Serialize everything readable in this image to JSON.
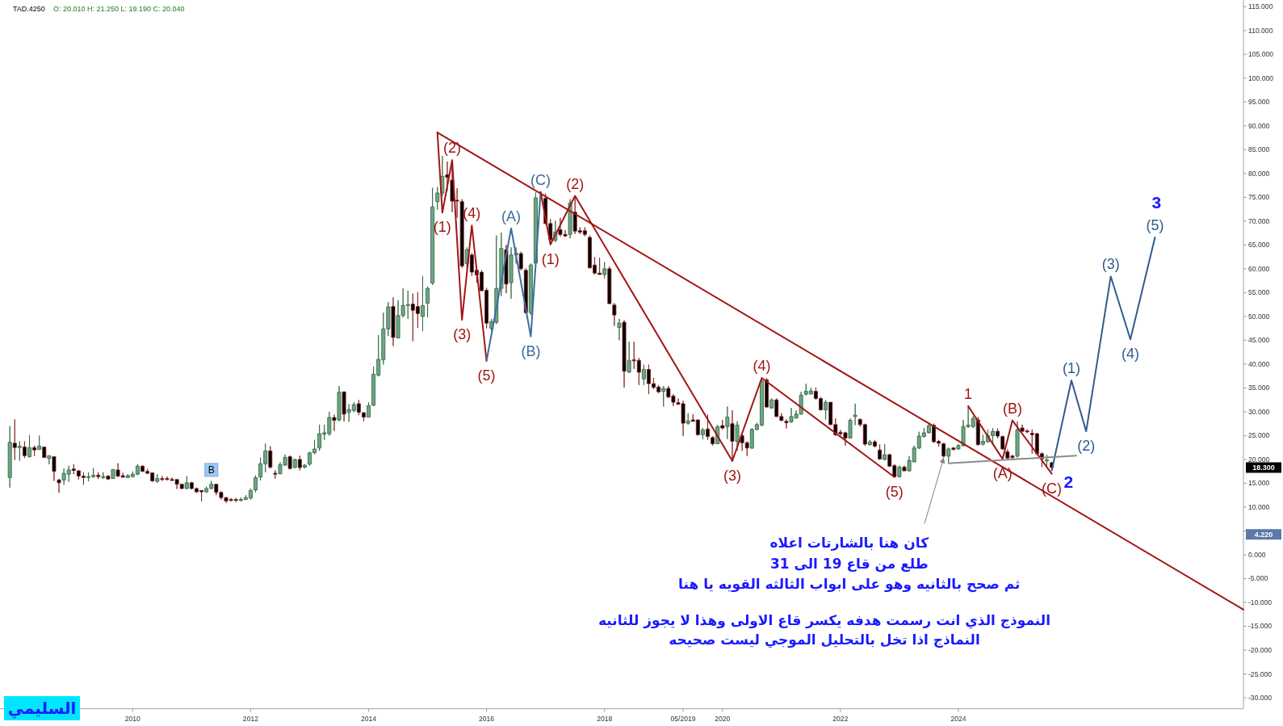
{
  "chart_data": {
    "type": "candlestick",
    "title": "TAD.4250",
    "subtitle": "O: 20.010  H: 21.250  L: 19.190  C: 20.040",
    "x": [
      "2007-12",
      "2008-01",
      "2008-02",
      "2008-03",
      "2008-04",
      "2008-05",
      "2008-06",
      "2008-07",
      "2008-08",
      "2008-09",
      "2008-10",
      "2008-11",
      "2008-12",
      "2009-01",
      "2009-02",
      "2009-03",
      "2009-04",
      "2009-05",
      "2009-06",
      "2009-07",
      "2009-08",
      "2009-09",
      "2009-10",
      "2009-11",
      "2009-12",
      "2010-01",
      "2010-02",
      "2010-03",
      "2010-04",
      "2010-05",
      "2010-06",
      "2010-07",
      "2010-08",
      "2010-09",
      "2010-10",
      "2010-11",
      "2010-12",
      "2011-01",
      "2011-02",
      "2011-03",
      "2011-04",
      "2011-05",
      "2011-06",
      "2011-07",
      "2011-08",
      "2011-09",
      "2011-10",
      "2011-11",
      "2011-12",
      "2012-01",
      "2012-02",
      "2012-03",
      "2012-04",
      "2012-05",
      "2012-06",
      "2012-07",
      "2012-08",
      "2012-09",
      "2012-10",
      "2012-11",
      "2012-12",
      "2013-01",
      "2013-02",
      "2013-03",
      "2013-04",
      "2013-05",
      "2013-06",
      "2013-07",
      "2013-08",
      "2013-09",
      "2013-10",
      "2013-11",
      "2013-12",
      "2014-01",
      "2014-02",
      "2014-03",
      "2014-04",
      "2014-05",
      "2014-06",
      "2014-07",
      "2014-08",
      "2014-09",
      "2014-10",
      "2014-11",
      "2014-12",
      "2015-01",
      "2015-02",
      "2015-03",
      "2015-04",
      "2015-05",
      "2015-06",
      "2015-07",
      "2015-08",
      "2015-09",
      "2015-10",
      "2015-11",
      "2015-12",
      "2016-01",
      "2016-02",
      "2016-03",
      "2016-04",
      "2016-05",
      "2016-06",
      "2016-07",
      "2016-08",
      "2016-09",
      "2016-10",
      "2016-11",
      "2017-01",
      "2017-02",
      "2017-03",
      "2017-04",
      "2017-05",
      "2017-06",
      "2017-07",
      "2017-08",
      "2017-09",
      "2017-10",
      "2017-11",
      "2017-12",
      "2018-01",
      "2018-02",
      "2018-03",
      "2018-04",
      "2018-05",
      "2018-06",
      "2018-07",
      "2018-08",
      "2018-09",
      "2018-10",
      "2018-11",
      "2018-12",
      "2019-01",
      "2019-02",
      "2019-03",
      "2019-04",
      "2019-05",
      "2019-06",
      "2019-07",
      "2019-08",
      "2019-09",
      "2019-10",
      "2019-11",
      "2019-12",
      "2020-01",
      "2020-02",
      "2020-03",
      "2020-04",
      "2020-05",
      "2020-06",
      "2020-07",
      "2020-08",
      "2020-09",
      "2020-10",
      "2020-11",
      "2020-12",
      "2021-01",
      "2021-02",
      "2021-03",
      "2021-04",
      "2021-05",
      "2021-06",
      "2021-07",
      "2021-08",
      "2021-09",
      "2021-10",
      "2021-11",
      "2021-12",
      "2022-01",
      "2022-02",
      "2022-03",
      "2022-04",
      "2022-05",
      "2022-06",
      "2022-07",
      "2022-08",
      "2022-09",
      "2022-10",
      "2022-11",
      "2022-12",
      "2023-01",
      "2023-02",
      "2023-03",
      "2023-04",
      "2023-05",
      "2023-06",
      "2023-07",
      "2023-08",
      "2023-09",
      "2023-10",
      "2023-11",
      "2023-12",
      "2024-01",
      "2024-02",
      "2024-03",
      "2024-04",
      "2024-05",
      "2024-06",
      "2024-07",
      "2024-08",
      "2024-09",
      "2024-10",
      "2024-11",
      "2024-12",
      "2025-01",
      "2025-02",
      "2025-03",
      "2025-04",
      "2025-05",
      "2025-06",
      "2025-07",
      "2025-08"
    ],
    "ohlc": [
      [
        16.2,
        27.0,
        14.1,
        23.6
      ],
      [
        23.4,
        28.4,
        19.9,
        22.5
      ],
      [
        22.5,
        23.8,
        19.7,
        22.8
      ],
      [
        22.6,
        23.8,
        20.3,
        20.8
      ],
      [
        20.6,
        25.1,
        20.4,
        22.5
      ],
      [
        22.5,
        22.9,
        20.7,
        22.0
      ],
      [
        22.1,
        25.0,
        22.0,
        22.8
      ],
      [
        22.6,
        22.6,
        20.4,
        20.4
      ],
      [
        20.2,
        20.8,
        19.0,
        20.8
      ],
      [
        20.6,
        20.6,
        15.5,
        17.5
      ],
      [
        15.7,
        15.9,
        13.0,
        15.1
      ],
      [
        15.7,
        18.1,
        14.7,
        17.1
      ],
      [
        16.9,
        18.7,
        15.3,
        17.8
      ],
      [
        18.0,
        19.0,
        16.9,
        17.7
      ],
      [
        17.6,
        17.8,
        15.8,
        16.5
      ],
      [
        16.5,
        17.3,
        14.7,
        16.2
      ],
      [
        16.2,
        17.3,
        15.4,
        16.4
      ],
      [
        16.4,
        18.2,
        16.1,
        16.7
      ],
      [
        16.7,
        17.3,
        15.9,
        16.4
      ],
      [
        16.2,
        17.3,
        15.9,
        16.4
      ],
      [
        16.5,
        16.7,
        15.7,
        15.9
      ],
      [
        16.0,
        17.9,
        16.0,
        17.9
      ],
      [
        17.8,
        19.2,
        16.3,
        16.5
      ],
      [
        16.6,
        17.2,
        16.1,
        16.3
      ],
      [
        16.2,
        16.9,
        16.1,
        16.6
      ],
      [
        16.4,
        17.5,
        16.2,
        16.9
      ],
      [
        16.9,
        19.0,
        16.7,
        18.6
      ],
      [
        18.6,
        18.8,
        17.4,
        17.5
      ],
      [
        17.5,
        18.0,
        16.9,
        17.1
      ],
      [
        17.2,
        17.2,
        15.3,
        15.5
      ],
      [
        15.4,
        16.9,
        15.1,
        16.0
      ],
      [
        16.0,
        16.5,
        15.5,
        15.8
      ],
      [
        16.0,
        16.4,
        15.6,
        15.8
      ],
      [
        15.8,
        16.2,
        15.5,
        15.6
      ],
      [
        15.8,
        15.8,
        13.8,
        14.8
      ],
      [
        14.8,
        14.9,
        13.8,
        13.9
      ],
      [
        13.9,
        16.5,
        13.8,
        15.1
      ],
      [
        15.1,
        15.3,
        13.7,
        13.9
      ],
      [
        13.9,
        14.1,
        13.0,
        13.2
      ],
      [
        13.5,
        13.5,
        11.2,
        13.2
      ],
      [
        13.2,
        14.3,
        13.0,
        13.9
      ],
      [
        13.9,
        15.5,
        13.8,
        14.8
      ],
      [
        14.8,
        14.9,
        12.5,
        13.1
      ],
      [
        13.1,
        13.3,
        11.6,
        12.0
      ],
      [
        12.0,
        12.1,
        10.9,
        11.3
      ],
      [
        11.6,
        11.9,
        11.2,
        11.4
      ],
      [
        11.6,
        11.9,
        11.1,
        11.4
      ],
      [
        11.4,
        12.0,
        11.2,
        11.6
      ],
      [
        11.6,
        12.5,
        11.5,
        12.0
      ],
      [
        11.9,
        13.9,
        11.6,
        13.5
      ],
      [
        13.6,
        16.7,
        13.1,
        16.2
      ],
      [
        16.3,
        20.4,
        15.6,
        19.1
      ],
      [
        19.1,
        23.3,
        17.3,
        21.8
      ],
      [
        21.8,
        22.8,
        18.1,
        18.4
      ],
      [
        17.1,
        17.7,
        16.0,
        16.9
      ],
      [
        17.0,
        19.4,
        16.9,
        18.9
      ],
      [
        18.8,
        21.0,
        18.7,
        20.4
      ],
      [
        20.6,
        20.8,
        17.9,
        18.1
      ],
      [
        18.3,
        20.1,
        18.2,
        20.0
      ],
      [
        20.0,
        20.8,
        17.7,
        18.3
      ],
      [
        18.4,
        19.0,
        18.1,
        18.8
      ],
      [
        19.0,
        21.6,
        18.7,
        21.4
      ],
      [
        21.4,
        24.1,
        21.1,
        22.2
      ],
      [
        22.4,
        27.3,
        21.8,
        25.4
      ],
      [
        25.3,
        27.3,
        24.1,
        25.6
      ],
      [
        25.4,
        30.0,
        25.0,
        28.8
      ],
      [
        28.8,
        29.4,
        26.0,
        28.2
      ],
      [
        28.3,
        35.4,
        28.0,
        34.1
      ],
      [
        34.2,
        34.2,
        28.0,
        29.5
      ],
      [
        29.9,
        31.6,
        27.9,
        30.5
      ],
      [
        30.3,
        32.0,
        29.9,
        31.5
      ],
      [
        31.7,
        32.5,
        29.3,
        29.9
      ],
      [
        29.8,
        29.9,
        28.0,
        28.9
      ],
      [
        28.9,
        32.0,
        28.9,
        31.3
      ],
      [
        31.4,
        39.5,
        31.2,
        37.9
      ],
      [
        37.7,
        46.1,
        37.4,
        41.0
      ],
      [
        40.9,
        50.8,
        39.9,
        47.4
      ],
      [
        47.4,
        53.0,
        45.9,
        52.0
      ],
      [
        52.1,
        54.0,
        43.8,
        45.6
      ],
      [
        45.5,
        53.4,
        45.4,
        50.2
      ],
      [
        50.2,
        55.9,
        49.8,
        52.3
      ],
      [
        52.3,
        55.4,
        49.5,
        52.5
      ],
      [
        52.6,
        54.8,
        44.8,
        51.3
      ],
      [
        52.1,
        55.1,
        47.6,
        50.6
      ],
      [
        50.0,
        58.5,
        46.9,
        52.3
      ],
      [
        52.8,
        56.3,
        49.8,
        55.9
      ],
      [
        57.0,
        77.0,
        56.6,
        73.0
      ],
      [
        74.1,
        77.2,
        72.4,
        75.9
      ],
      [
        75.9,
        83.7,
        75.2,
        79.4
      ],
      [
        79.7,
        82.5,
        76.3,
        79.2
      ],
      [
        78.6,
        81.7,
        71.9,
        74.2
      ],
      [
        74.4,
        76.9,
        70.7,
        74.2
      ],
      [
        74.1,
        74.6,
        60.2,
        60.6
      ],
      [
        61.1,
        64.5,
        60.2,
        64.0
      ],
      [
        62.9,
        63.3,
        58.5,
        59.3
      ],
      [
        59.7,
        60.2,
        57.1,
        58.7
      ],
      [
        59.3,
        59.7,
        55.3,
        55.4
      ],
      [
        55.5,
        56.0,
        47.5,
        48.6
      ],
      [
        47.5,
        49.5,
        46.9,
        48.9
      ],
      [
        48.8,
        67.0,
        48.4,
        55.9
      ],
      [
        55.9,
        67.6,
        54.3,
        64.3
      ],
      [
        64.0,
        65.0,
        54.9,
        56.8
      ],
      [
        57.1,
        64.5,
        53.7,
        62.9
      ],
      [
        62.9,
        64.5,
        61.1,
        63.3
      ],
      [
        63.2,
        63.6,
        59.7,
        60.0
      ],
      [
        59.7,
        60.1,
        50.6,
        50.8
      ],
      [
        50.8,
        61.1,
        50.3,
        60.8
      ],
      [
        61.2,
        76.0,
        60.8,
        74.9
      ],
      [
        74.8,
        75.8,
        69.3,
        69.5
      ],
      [
        69.5,
        70.4,
        65.3,
        66.1
      ],
      [
        66.0,
        70.1,
        65.6,
        67.7
      ],
      [
        68.2,
        70.7,
        66.8,
        67.2
      ],
      [
        67.2,
        68.1,
        66.7,
        66.9
      ],
      [
        67.2,
        74.6,
        66.4,
        73.8
      ],
      [
        71.9,
        74.9,
        67.3,
        67.9
      ],
      [
        68.0,
        68.7,
        67.3,
        67.7
      ],
      [
        68.0,
        68.7,
        66.8,
        67.2
      ],
      [
        66.6,
        67.0,
        60.1,
        60.2
      ],
      [
        60.8,
        62.5,
        58.8,
        59.1
      ],
      [
        59.1,
        62.3,
        58.8,
        58.8
      ],
      [
        58.8,
        61.4,
        58.0,
        60.0
      ],
      [
        60.0,
        60.5,
        52.6,
        52.7
      ],
      [
        52.4,
        52.8,
        48.0,
        50.3
      ],
      [
        47.7,
        49.5,
        45.0,
        48.6
      ],
      [
        48.8,
        49.2,
        35.1,
        38.5
      ],
      [
        38.3,
        44.7,
        38.2,
        40.8
      ],
      [
        40.9,
        44.7,
        39.0,
        40.7
      ],
      [
        40.8,
        41.3,
        35.6,
        38.3
      ],
      [
        36.9,
        39.9,
        35.6,
        38.9
      ],
      [
        38.9,
        39.9,
        33.7,
        35.9
      ],
      [
        35.9,
        37.1,
        34.8,
        35.1
      ],
      [
        35.2,
        35.6,
        33.9,
        34.2
      ],
      [
        34.3,
        35.4,
        31.1,
        34.9
      ],
      [
        34.9,
        35.4,
        32.9,
        33.1
      ],
      [
        33.3,
        33.7,
        31.2,
        32.0
      ],
      [
        31.9,
        32.8,
        31.4,
        31.6
      ],
      [
        31.7,
        32.3,
        24.9,
        27.6
      ],
      [
        27.6,
        29.7,
        27.3,
        28.1
      ],
      [
        28.3,
        29.5,
        28.0,
        28.0
      ],
      [
        28.3,
        28.4,
        25.0,
        25.2
      ],
      [
        25.2,
        26.6,
        24.2,
        26.2
      ],
      [
        26.4,
        29.4,
        24.1,
        24.8
      ],
      [
        24.6,
        24.9,
        22.9,
        23.3
      ],
      [
        23.3,
        27.2,
        23.2,
        26.9
      ],
      [
        27.1,
        28.3,
        26.3,
        26.6
      ],
      [
        26.9,
        31.1,
        24.3,
        28.9
      ],
      [
        27.5,
        30.3,
        19.5,
        23.8
      ],
      [
        23.8,
        28.0,
        21.8,
        27.2
      ],
      [
        25.0,
        25.5,
        21.8,
        23.5
      ],
      [
        23.5,
        23.8,
        20.7,
        22.4
      ],
      [
        22.4,
        26.6,
        22.2,
        26.3
      ],
      [
        26.3,
        27.7,
        26.1,
        27.3
      ],
      [
        27.2,
        37.1,
        27.0,
        36.5
      ],
      [
        36.7,
        37.1,
        30.8,
        31.0
      ],
      [
        30.8,
        32.8,
        30.7,
        32.5
      ],
      [
        32.5,
        32.8,
        28.9,
        29.0
      ],
      [
        29.0,
        29.7,
        28.0,
        28.2
      ],
      [
        28.0,
        28.4,
        26.5,
        27.7
      ],
      [
        27.9,
        30.8,
        27.7,
        29.0
      ],
      [
        28.7,
        30.3,
        28.6,
        29.5
      ],
      [
        29.5,
        34.2,
        29.4,
        33.5
      ],
      [
        33.7,
        35.9,
        33.4,
        34.3
      ],
      [
        33.7,
        35.1,
        33.7,
        34.4
      ],
      [
        34.3,
        35.1,
        32.5,
        32.8
      ],
      [
        32.8,
        33.1,
        30.3,
        30.4
      ],
      [
        30.4,
        32.5,
        28.3,
        32.0
      ],
      [
        32.0,
        32.0,
        27.2,
        27.3
      ],
      [
        27.3,
        28.6,
        24.9,
        25.2
      ],
      [
        25.7,
        26.2,
        25.0,
        25.4
      ],
      [
        25.6,
        25.8,
        22.9,
        24.5
      ],
      [
        24.5,
        28.6,
        24.4,
        28.2
      ],
      [
        29.0,
        31.7,
        27.2,
        29.3
      ],
      [
        28.4,
        28.6,
        26.9,
        27.3
      ],
      [
        27.3,
        27.5,
        22.9,
        23.2
      ],
      [
        23.1,
        24.1,
        22.9,
        23.7
      ],
      [
        23.7,
        24.1,
        22.5,
        22.8
      ],
      [
        22.0,
        23.2,
        19.9,
        20.1
      ],
      [
        20.0,
        23.2,
        19.8,
        21.0
      ],
      [
        21.0,
        21.2,
        18.4,
        18.6
      ],
      [
        18.7,
        19.0,
        16.2,
        16.4
      ],
      [
        16.4,
        18.7,
        16.2,
        18.4
      ],
      [
        18.4,
        18.7,
        17.6,
        17.6
      ],
      [
        17.6,
        20.7,
        17.5,
        19.8
      ],
      [
        19.5,
        22.9,
        19.4,
        22.4
      ],
      [
        22.4,
        25.8,
        22.2,
        24.9
      ],
      [
        24.8,
        26.6,
        24.6,
        25.6
      ],
      [
        25.6,
        27.6,
        25.5,
        27.1
      ],
      [
        27.2,
        27.5,
        23.5,
        23.7
      ],
      [
        23.8,
        24.1,
        22.7,
        23.4
      ],
      [
        23.3,
        23.5,
        20.4,
        20.7
      ],
      [
        20.7,
        22.5,
        19.4,
        22.2
      ],
      [
        22.4,
        22.6,
        21.9,
        22.1
      ],
      [
        22.2,
        23.2,
        22.1,
        22.9
      ],
      [
        22.9,
        28.3,
        22.7,
        26.9
      ],
      [
        26.9,
        31.2,
        26.6,
        27.2
      ],
      [
        26.9,
        29.1,
        26.6,
        28.6
      ],
      [
        28.3,
        28.9,
        22.9,
        23.1
      ],
      [
        23.2,
        25.2,
        22.9,
        23.8
      ],
      [
        23.7,
        26.3,
        23.5,
        25.0
      ],
      [
        25.0,
        26.6,
        23.5,
        25.9
      ],
      [
        25.9,
        26.5,
        24.4,
        24.9
      ],
      [
        24.8,
        25.0,
        22.0,
        22.2
      ],
      [
        21.6,
        22.1,
        20.0,
        20.3
      ],
      [
        20.7,
        21.0,
        20.1,
        20.4
      ],
      [
        20.7,
        28.0,
        20.4,
        26.2
      ],
      [
        26.6,
        27.3,
        25.8,
        25.9
      ],
      [
        26.0,
        26.3,
        25.5,
        25.8
      ],
      [
        25.5,
        26.3,
        21.2,
        25.2
      ],
      [
        25.4,
        25.6,
        21.0,
        21.2
      ],
      [
        21.2,
        21.5,
        18.4,
        20.1
      ],
      [
        19.7,
        21.0,
        18.7,
        19.9
      ],
      [
        19.3,
        19.5,
        18.0,
        18.3
      ]
    ],
    "series": [
      {
        "type": "line",
        "color": "#a31515",
        "x": [
          "2015-03",
          "2028-11"
        ],
        "values": [
          88.6,
          -11.5
        ]
      },
      {
        "type": "line",
        "color": "#a31515",
        "x": [
          "2015-03",
          "2015-04",
          "2015-06",
          "2015-08",
          "2015-10",
          "2016-01"
        ],
        "values": [
          88.6,
          71.8,
          82.8,
          49.3,
          69.1,
          40.7
        ]
      },
      {
        "type": "line",
        "color": "#3d6d9e",
        "x": [
          "2016-01",
          "2016-06",
          "2016-10",
          "2016-12"
        ],
        "values": [
          40.7,
          68.5,
          45.8,
          76.1
        ]
      },
      {
        "type": "line",
        "color": "#a31515",
        "x": [
          "2016-12",
          "2017-02",
          "2017-07",
          "2020-03",
          "2020-09",
          "2022-12"
        ],
        "values": [
          76.1,
          65.1,
          75.3,
          19.7,
          37.1,
          16.3
        ]
      },
      {
        "type": "line",
        "color": "#a31515",
        "x": [
          "2024-03",
          "2024-10",
          "2024-12",
          "2025-08"
        ],
        "values": [
          31.2,
          20.1,
          28.2,
          17.0
        ]
      },
      {
        "type": "line",
        "color": "#2e5d8c",
        "x": [
          "2025-08",
          "2025-12",
          "2026-03",
          "2026-08",
          "2026-12",
          "2027-05"
        ],
        "values": [
          17.7,
          36.6,
          25.9,
          58.4,
          45.2,
          66.6
        ]
      },
      {
        "type": "line",
        "color": "#8c8c8c",
        "x": [
          "2023-11",
          "2026-01"
        ],
        "values": [
          19.2,
          20.8
        ]
      }
    ],
    "annotations": [
      {
        "text": "(1)",
        "x": "2015-04",
        "y": 71.8
      },
      {
        "text": "(2)",
        "x": "2015-06",
        "y": 82.8
      },
      {
        "text": "(3)",
        "x": "2015-08",
        "y": 49.3
      },
      {
        "text": "(4)",
        "x": "2015-10",
        "y": 69.1
      },
      {
        "text": "(5)",
        "x": "2016-01",
        "y": 40.7
      },
      {
        "text": "(A)",
        "x": "2016-06",
        "y": 68.5
      },
      {
        "text": "(B)",
        "x": "2016-10",
        "y": 45.8
      },
      {
        "text": "(C)",
        "x": "2016-12",
        "y": 76.1
      },
      {
        "text": "(1)",
        "x": "2017-02",
        "y": 65.1
      },
      {
        "text": "(2)",
        "x": "2017-07",
        "y": 75.3
      },
      {
        "text": "(3)",
        "x": "2020-03",
        "y": 19.7
      },
      {
        "text": "(4)",
        "x": "2020-09",
        "y": 37.1
      },
      {
        "text": "(5)",
        "x": "2022-12",
        "y": 16.3
      },
      {
        "text": "1",
        "x": "2024-03",
        "y": 31.2
      },
      {
        "text": "(A)",
        "x": "2024-10",
        "y": 20.1
      },
      {
        "text": "(B)",
        "x": "2024-12",
        "y": 28.2
      },
      {
        "text": "(C)",
        "x": "2025-08",
        "y": 17.0
      },
      {
        "text": "2",
        "x": "2025-08",
        "y": 17.0
      },
      {
        "text": "(1)",
        "x": "2025-12",
        "y": 36.6
      },
      {
        "text": "(2)",
        "x": "2026-03",
        "y": 25.9
      },
      {
        "text": "(3)",
        "x": "2026-08",
        "y": 58.4
      },
      {
        "text": "(4)",
        "x": "2026-12",
        "y": 45.2
      },
      {
        "text": "(5)",
        "x": "2027-05",
        "y": 66.6
      },
      {
        "text": "3",
        "x": "2027-05",
        "y": 66.6
      },
      "السليمي",
      "18.300",
      "4.220",
      {
        "text": "B",
        "x": "2011-05",
        "y": 17.8
      },
      {
        "text": "كان هنا بالشارتات اعلاه",
        "x": "2023-10",
        "y": 20.3
      },
      "طلع من قاع 19 الى 31",
      "ثم صحح بالثانيه وهو على ابواب الثالثه القويه يا هنا",
      "النموذج الذي انت رسمت هدفه يكسر قاع الاولى وهذا لا يجوز للثانيه",
      "النماذج اذا تخل بالتحليل الموجي ليست صحيحه"
    ],
    "xlim": [
      "2007-10",
      "2028-11"
    ],
    "ylim": [
      -32.3,
      116.4
    ],
    "xticks": [
      "2010",
      "2012",
      "2014",
      "2016",
      "2018",
      {
        "value": "2019-05",
        "label": "05/2019"
      },
      "2020",
      "2022",
      "2024"
    ],
    "yticks": [
      {
        "value": -30,
        "label": "-30.000"
      },
      {
        "value": -25,
        "label": "-25.000"
      },
      {
        "value": -20,
        "label": "-20.000"
      },
      {
        "value": -15,
        "label": "-15.000"
      },
      {
        "value": -10,
        "label": "-10.000"
      },
      {
        "value": -5,
        "label": "-5.000"
      },
      {
        "value": 0,
        "label": "0.000"
      },
      {
        "value": 5,
        "label": null
      },
      {
        "value": 10,
        "label": "10.000"
      },
      {
        "value": 15,
        "label": "15.000"
      },
      {
        "value": 20,
        "label": "20.000"
      },
      {
        "value": 25,
        "label": "25.000"
      },
      {
        "value": 30,
        "label": "30.000"
      },
      {
        "value": 35,
        "label": "35.000"
      },
      {
        "value": 40,
        "label": "40.000"
      },
      {
        "value": 45,
        "label": "45.000"
      },
      {
        "value": 50,
        "label": "50.000"
      },
      {
        "value": 55,
        "label": "55.000"
      },
      {
        "value": 60,
        "label": "60.000"
      },
      {
        "value": 65,
        "label": "65.000"
      },
      {
        "value": 70,
        "label": "70.000"
      },
      {
        "value": 75,
        "label": "75.000"
      },
      {
        "value": 80,
        "label": "80.000"
      },
      {
        "value": 85,
        "label": "85.000"
      },
      {
        "value": 90,
        "label": "90.000"
      },
      {
        "value": 95,
        "label": "95.000"
      },
      {
        "value": 100,
        "label": "100.000"
      },
      {
        "value": 105,
        "label": "105.000"
      },
      {
        "value": 110,
        "label": "110.000"
      },
      {
        "value": 115,
        "label": "115.000"
      }
    ]
  }
}
